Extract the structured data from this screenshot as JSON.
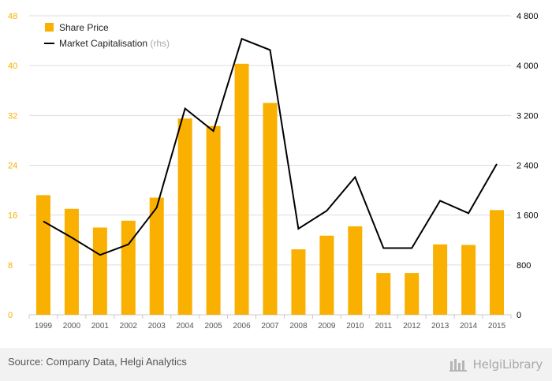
{
  "footer": {
    "source": "Source: Company Data, Helgi Analytics",
    "logo_text": "HelgiLibrary"
  },
  "colors": {
    "bar": "#f9b000",
    "line": "#000000",
    "grid": "#dddddd",
    "axis_text_left": "#f9b000",
    "axis_text_right": "#000000",
    "footer_bg": "#f2f2f2"
  },
  "chart_data": {
    "type": "bar",
    "categories": [
      "1999",
      "2000",
      "2001",
      "2002",
      "2003",
      "2004",
      "2005",
      "2006",
      "2007",
      "2008",
      "2009",
      "2010",
      "2011",
      "2012",
      "2013",
      "2014",
      "2015"
    ],
    "series": [
      {
        "name": "Share Price",
        "type": "bar",
        "axis": "left",
        "values": [
          19.2,
          17.0,
          14.0,
          15.1,
          18.8,
          31.5,
          30.3,
          40.3,
          34.0,
          10.5,
          12.7,
          14.2,
          6.7,
          6.7,
          11.3,
          11.2,
          16.8
        ]
      },
      {
        "name": "Market Capitalisation",
        "name_suffix": "(rhs)",
        "type": "line",
        "axis": "right",
        "values": [
          1500,
          1240,
          960,
          1130,
          1720,
          3310,
          2950,
          4430,
          4250,
          1380,
          1670,
          2210,
          1070,
          1070,
          1830,
          1630,
          2420
        ]
      }
    ],
    "y_left": {
      "min": 0,
      "max": 48,
      "ticks": [
        0,
        8,
        16,
        24,
        32,
        40,
        48
      ],
      "tick_labels": [
        "0",
        "8",
        "16",
        "24",
        "32",
        "40",
        "48"
      ]
    },
    "y_right": {
      "min": 0,
      "max": 4800,
      "ticks": [
        0,
        800,
        1600,
        2400,
        3200,
        4000,
        4800
      ],
      "tick_labels": [
        "0",
        "800",
        "1 600",
        "2 400",
        "3 200",
        "4 000",
        "4 800"
      ]
    },
    "legend": {
      "placement": "top-left"
    },
    "grid": true
  }
}
